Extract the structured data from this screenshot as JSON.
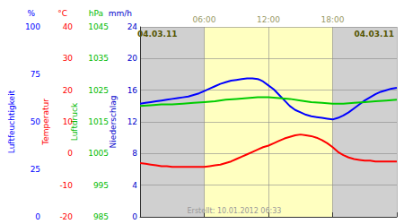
{
  "chart_data": {
    "type": "line",
    "date_labels": {
      "left": "04.03.11",
      "right": "04.03.11",
      "color": "#555500"
    },
    "footer": {
      "text": "Erstellt: 10.01.2012 06:33",
      "color": "#999999"
    },
    "xlim": [
      0,
      24
    ],
    "xticks": [
      {
        "value": 6,
        "label": "06:00"
      },
      {
        "value": 12,
        "label": "12:00"
      },
      {
        "value": 18,
        "label": "18:00"
      }
    ],
    "xtick_color": "#999966",
    "ylim": [
      0,
      24
    ],
    "yticks": [
      0,
      4,
      8,
      12,
      16,
      20,
      24
    ],
    "grid": true,
    "background": "#d0d0d0",
    "bands": [
      {
        "from": 6,
        "to": 18,
        "color": "#ffffc0"
      }
    ],
    "y_axes": [
      {
        "label": "Luftfeuchtigkeit",
        "unit": "%",
        "color": "#0000ff",
        "ticks": [
          0,
          {
            "value": 6,
            "label": "25"
          },
          {
            "value": 12,
            "label": "50"
          },
          {
            "value": 18,
            "label": "75"
          },
          {
            "value": 24,
            "label": "100"
          }
        ]
      },
      {
        "label": "Temperatur",
        "unit": "°C",
        "color": "#ff0000",
        "ticks": [
          {
            "value": 0,
            "label": "-20"
          },
          {
            "value": 4,
            "label": "-10"
          },
          {
            "value": 8,
            "label": "0"
          },
          {
            "value": 12,
            "label": "10"
          },
          {
            "value": 16,
            "label": "20"
          },
          {
            "value": 20,
            "label": "30"
          },
          {
            "value": 24,
            "label": "40"
          }
        ]
      },
      {
        "label": "Luftdruck",
        "unit": "hPa",
        "color": "#00bb00",
        "ticks": [
          {
            "value": 0,
            "label": "985"
          },
          {
            "value": 4,
            "label": "995"
          },
          {
            "value": 8,
            "label": "1005"
          },
          {
            "value": 12,
            "label": "1015"
          },
          {
            "value": 16,
            "label": "1025"
          },
          {
            "value": 20,
            "label": "1035"
          },
          {
            "value": 24,
            "label": "1045"
          }
        ]
      },
      {
        "label": "Niederschlag",
        "unit": "mm/h",
        "color": "#0000cc",
        "ticks": [
          0,
          4,
          8,
          12,
          16,
          20,
          24
        ]
      }
    ],
    "series": [
      {
        "color": "#0000ff",
        "x": [
          0,
          0.5,
          1,
          1.5,
          2,
          2.5,
          3,
          3.5,
          4,
          4.5,
          5,
          5.5,
          6,
          6.5,
          7,
          7.5,
          8,
          8.5,
          9,
          9.5,
          10,
          10.5,
          11,
          11.2,
          11.5,
          12,
          12.5,
          13,
          13.5,
          14,
          14.5,
          15,
          15.5,
          16,
          16.5,
          17,
          17.5,
          18,
          18.5,
          19,
          19.5,
          20,
          20.5,
          21,
          21.5,
          22,
          22.5,
          23,
          23.5,
          24
        ],
        "values": [
          14.3,
          14.4,
          14.5,
          14.6,
          14.7,
          14.8,
          14.9,
          15.0,
          15.1,
          15.2,
          15.4,
          15.6,
          15.9,
          16.2,
          16.5,
          16.8,
          17.0,
          17.2,
          17.3,
          17.4,
          17.5,
          17.5,
          17.4,
          17.3,
          17.1,
          16.6,
          16.1,
          15.4,
          14.7,
          14.0,
          13.5,
          13.2,
          12.9,
          12.7,
          12.6,
          12.5,
          12.4,
          12.3,
          12.5,
          12.8,
          13.2,
          13.7,
          14.2,
          14.7,
          15.1,
          15.5,
          15.8,
          16.0,
          16.2,
          16.3
        ]
      },
      {
        "color": "#00cc00",
        "x": [
          0,
          1,
          2,
          3,
          4,
          5,
          6,
          7,
          8,
          9,
          10,
          11,
          12,
          13,
          14,
          15,
          16,
          17,
          18,
          19,
          20,
          21,
          22,
          23,
          24
        ],
        "values": [
          14.0,
          14.1,
          14.2,
          14.2,
          14.3,
          14.4,
          14.5,
          14.6,
          14.8,
          14.9,
          15.0,
          15.1,
          15.1,
          15.0,
          14.9,
          14.7,
          14.5,
          14.4,
          14.3,
          14.3,
          14.4,
          14.5,
          14.6,
          14.7,
          14.8
        ]
      },
      {
        "color": "#ff0000",
        "x": [
          0,
          0.5,
          1,
          1.5,
          2,
          2.5,
          3,
          3.5,
          4,
          4.5,
          5,
          5.5,
          6,
          6.5,
          7,
          7.5,
          8,
          8.5,
          9,
          9.5,
          10,
          10.5,
          11,
          11.5,
          12,
          12.5,
          13,
          13.5,
          14,
          14.5,
          15,
          15.5,
          16,
          16.5,
          17,
          17.5,
          18,
          18.5,
          19,
          19.5,
          20,
          20.5,
          21,
          21.5,
          22,
          22.5,
          23,
          23.5,
          24
        ],
        "values": [
          6.8,
          6.7,
          6.6,
          6.5,
          6.4,
          6.4,
          6.3,
          6.3,
          6.3,
          6.3,
          6.3,
          6.3,
          6.3,
          6.4,
          6.5,
          6.6,
          6.8,
          7.0,
          7.3,
          7.6,
          7.9,
          8.2,
          8.5,
          8.8,
          9.0,
          9.3,
          9.6,
          9.9,
          10.1,
          10.3,
          10.4,
          10.3,
          10.2,
          10.0,
          9.7,
          9.3,
          8.8,
          8.2,
          7.8,
          7.5,
          7.3,
          7.2,
          7.1,
          7.1,
          7.0,
          7.0,
          7.0,
          7.0,
          7.0
        ]
      }
    ]
  }
}
